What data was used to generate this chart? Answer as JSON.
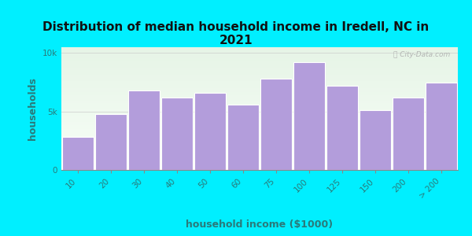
{
  "title": "Distribution of median household income in Iredell, NC in\n2021",
  "xlabel": "household income ($1000)",
  "ylabel": "households",
  "categories": [
    "10",
    "20",
    "30",
    "40",
    "50",
    "60",
    "75",
    "100",
    "125",
    "150",
    "200",
    "> 200"
  ],
  "values": [
    2800,
    4800,
    6800,
    6200,
    6600,
    5600,
    7800,
    9200,
    7200,
    5100,
    6200,
    7500
  ],
  "bar_color": "#b39ddb",
  "bar_edge_color": "#ffffff",
  "bg_outer": "#00efff",
  "bg_plot_top": "#e6f4e6",
  "bg_plot_bottom": "#f8fff8",
  "text_color": "#2a7a7a",
  "title_color": "#111111",
  "yticks": [
    0,
    5000,
    10000
  ],
  "ytick_labels": [
    "0",
    "5k",
    "10k"
  ],
  "ylim": [
    0,
    10500
  ],
  "title_fontsize": 11,
  "axis_label_fontsize": 9,
  "watermark_text": "ⓘ City-Data.com"
}
